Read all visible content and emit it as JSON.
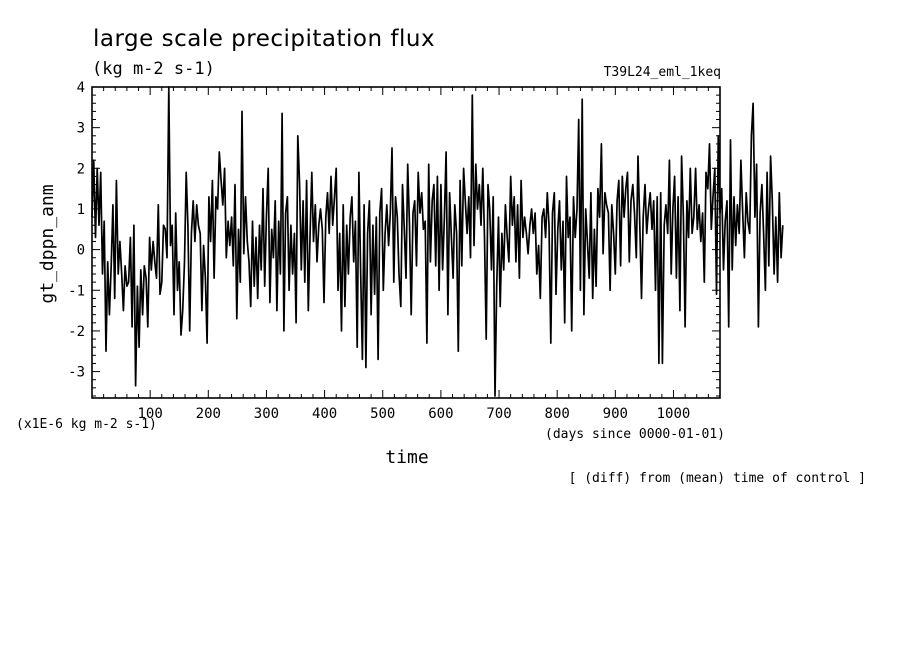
{
  "chart_data": {
    "type": "line",
    "title": "large scale precipitation flux",
    "units": "(kg m-2 s-1)",
    "experiment": "T39L24_eml_1keq",
    "ylabel": "gt_dppn_anm",
    "xlabel": "time",
    "y_scale_note": "(x1E-6 kg m-2 s-1)",
    "x_units_note": "(days since 0000-01-01)",
    "footer": "[ (diff) from (mean) time of control ]",
    "xlim": [
      0,
      1080
    ],
    "ylim": [
      -3.65,
      4
    ],
    "x_ticks": [
      100,
      200,
      300,
      400,
      500,
      600,
      700,
      800,
      900,
      1000
    ],
    "y_ticks": [
      -3,
      -2,
      -1,
      0,
      1,
      2,
      3,
      4
    ],
    "x_start": 0,
    "x_step": 3,
    "series": [
      {
        "values": [
          0.8,
          2.2,
          0.3,
          2.0,
          0.6,
          1.9,
          -0.6,
          0.7,
          -2.5,
          -0.3,
          -1.6,
          -0.4,
          1.1,
          -1.2,
          1.7,
          -0.6,
          0.2,
          -0.6,
          -1.5,
          -0.4,
          -0.9,
          -0.8,
          0.3,
          -1.9,
          0.6,
          -3.35,
          -0.9,
          -2.4,
          -0.5,
          -1.6,
          -0.4,
          -0.7,
          -1.9,
          0.3,
          -0.5,
          0.2,
          -0.3,
          -0.7,
          1.1,
          -1.1,
          -0.8,
          0.6,
          0.5,
          -0.2,
          4.0,
          0.1,
          0.6,
          -1.6,
          0.9,
          -1.0,
          -0.3,
          -2.1,
          -1.5,
          -0.3,
          1.9,
          0.6,
          -2.0,
          0.4,
          1.2,
          0.2,
          1.1,
          0.6,
          0.4,
          -1.5,
          0.1,
          -0.7,
          -2.3,
          1.3,
          0.2,
          1.7,
          -0.7,
          1.3,
          1.0,
          2.4,
          1.7,
          1.1,
          2.0,
          -0.2,
          0.7,
          0.1,
          0.8,
          -0.4,
          1.6,
          -1.7,
          0.5,
          -0.8,
          3.4,
          -0.1,
          1.3,
          0.2,
          -0.3,
          -1.4,
          0.7,
          -0.9,
          0.3,
          -1.2,
          0.6,
          -0.5,
          1.5,
          -0.9,
          0.8,
          2.0,
          -1.3,
          0.5,
          -0.2,
          1.2,
          -1.5,
          0.7,
          -0.6,
          3.35,
          -2.0,
          0.9,
          1.3,
          -1.0,
          0.6,
          -0.6,
          0.4,
          -1.8,
          2.8,
          1.6,
          -0.5,
          1.2,
          -0.8,
          1.7,
          -1.5,
          0.4,
          1.9,
          0.2,
          1.1,
          -0.3,
          0.6,
          1.0,
          0.5,
          -1.3,
          0.8,
          1.4,
          0.4,
          1.8,
          0.6,
          1.3,
          2.0,
          -1.0,
          0.4,
          -2.0,
          1.1,
          -1.4,
          0.6,
          -0.6,
          0.8,
          1.3,
          -0.3,
          0.7,
          -2.4,
          1.9,
          -0.5,
          -2.7,
          1.1,
          -2.9,
          0.4,
          1.2,
          -1.6,
          0.6,
          -1.1,
          0.8,
          -2.7,
          0.9,
          1.5,
          -1.0,
          0.4,
          1.1,
          0.1,
          0.9,
          2.5,
          -0.8,
          1.3,
          0.8,
          -0.6,
          -1.4,
          1.6,
          0.5,
          -0.7,
          2.1,
          0.6,
          -1.6,
          0.9,
          1.2,
          -0.4,
          1.9,
          0.9,
          1.4,
          0.5,
          0.7,
          -2.3,
          2.1,
          -0.3,
          1.2,
          1.6,
          -0.4,
          1.8,
          -1.0,
          1.6,
          -0.5,
          0.8,
          2.4,
          -1.6,
          1.4,
          0.3,
          -0.7,
          1.1,
          0.4,
          -2.5,
          1.7,
          -0.4,
          2.0,
          1.2,
          0.4,
          1.3,
          -0.2,
          3.8,
          0.1,
          2.1,
          1.0,
          1.6,
          0.6,
          2.0,
          0.3,
          -2.2,
          1.6,
          1.0,
          -0.5,
          1.3,
          -3.6,
          -0.9,
          0.8,
          -1.4,
          0.4,
          -0.5,
          1.1,
          0.3,
          -0.3,
          1.8,
          0.6,
          1.3,
          -0.3,
          1.1,
          -0.7,
          1.7,
          0.3,
          0.8,
          0.4,
          -0.1,
          0.6,
          1.0,
          0.4,
          0.9,
          -0.6,
          0.1,
          -1.2,
          0.8,
          1.0,
          0.3,
          1.4,
          0.6,
          -2.3,
          0.9,
          1.4,
          -1.1,
          0.5,
          1.2,
          -0.5,
          0.7,
          -1.8,
          1.8,
          0.3,
          0.8,
          -2.0,
          1.3,
          0.3,
          1.0,
          3.2,
          -1.0,
          3.7,
          -1.6,
          1.0,
          0.2,
          -0.7,
          1.4,
          -1.2,
          0.5,
          -0.9,
          1.5,
          0.8,
          2.6,
          -0.1,
          1.4,
          1.1,
          0.9,
          -1.0,
          1.1,
          0.4,
          -0.6,
          1.2,
          1.7,
          -0.4,
          1.8,
          0.8,
          1.5,
          1.9,
          -0.3,
          1.2,
          1.6,
          0.9,
          -0.2,
          2.3,
          0.6,
          -1.2,
          0.8,
          1.6,
          0.4,
          1.0,
          1.4,
          0.5,
          1.2,
          -1.0,
          1.3,
          -2.8,
          1.4,
          -2.8,
          0.6,
          1.1,
          0.4,
          2.2,
          -0.6,
          1.0,
          1.8,
          -0.7,
          1.3,
          -1.5,
          2.3,
          0.8,
          -1.9,
          1.2,
          0.3,
          2.0,
          0.4,
          0.8,
          2.0,
          0.5,
          1.1,
          0.2,
          0.9,
          -0.8,
          1.9,
          1.5,
          2.6,
          0.5,
          1.3,
          2.0,
          -1.1,
          2.8,
          0.9,
          1.5,
          -0.5,
          0.7,
          1.2,
          -1.9,
          2.7,
          -0.5,
          1.3,
          0.1,
          1.1,
          0.4,
          2.2,
          0.9,
          -0.2,
          1.4,
          0.7,
          0.4,
          2.8,
          3.6,
          0.8,
          2.1,
          -1.9,
          0.9,
          1.6,
          0.4,
          -1.0,
          1.9,
          -0.4,
          2.3,
          1.2,
          -0.6,
          0.8,
          -0.8,
          1.4,
          -0.2,
          0.6
        ]
      }
    ]
  }
}
